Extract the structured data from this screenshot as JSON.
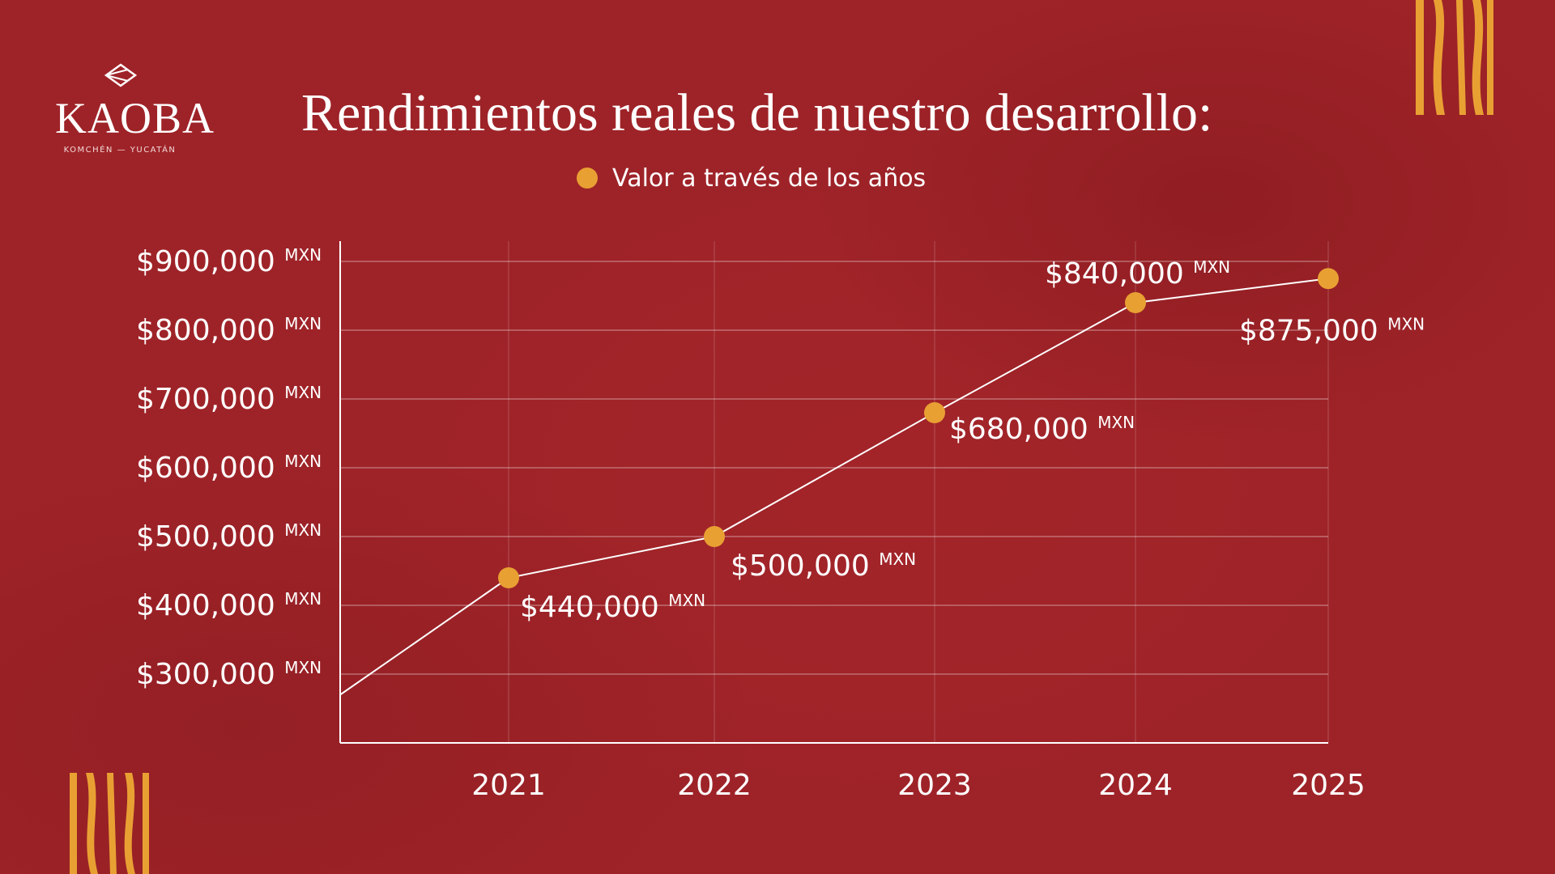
{
  "brand": {
    "name": "KAOBA",
    "subtitle": "KOMCHÉN — YUCATÁN"
  },
  "colors": {
    "background": "#9e2328",
    "accent": "#e9a033",
    "line": "#ffffff"
  },
  "chart_data": {
    "type": "line",
    "title": "Rendimientos reales de nuestro desarrollo:",
    "xlabel": "",
    "ylabel": "",
    "categories": [
      "2021",
      "2022",
      "2023",
      "2024",
      "2025"
    ],
    "series": [
      {
        "name": "Valor a través de los años",
        "values": [
          440000,
          500000,
          680000,
          840000,
          875000
        ],
        "labels": [
          "$440,000",
          "$500,000",
          "$680,000",
          "$840,000",
          "$875,000"
        ]
      }
    ],
    "start_value": 270000,
    "ylim": [
      200000,
      900000
    ],
    "yticks": [
      300000,
      400000,
      500000,
      600000,
      700000,
      800000,
      900000
    ],
    "ytick_labels": [
      "$300,000",
      "$400,000",
      "$500,000",
      "$600,000",
      "$700,000",
      "$800,000",
      "$900,000"
    ],
    "unit": "MXN",
    "grid": true,
    "legend_position": "top-center"
  }
}
